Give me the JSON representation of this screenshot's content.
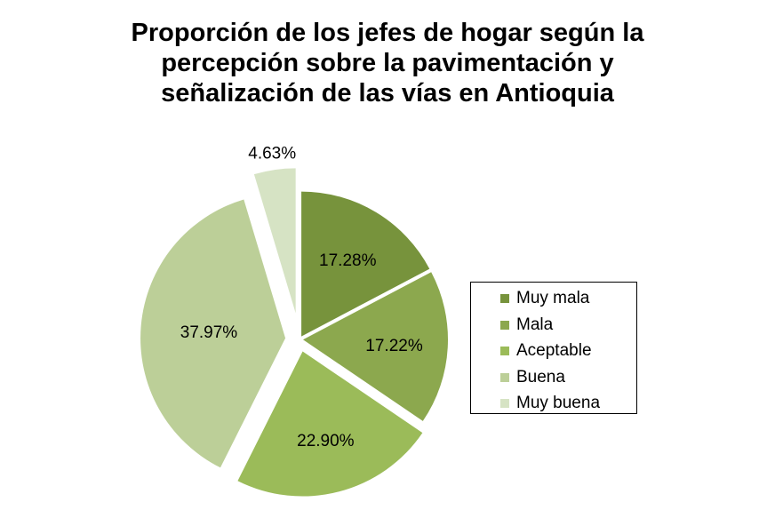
{
  "chart_data": {
    "type": "pie",
    "title_lines": [
      "Proporción de los jefes de hogar según la",
      "percepción sobre la pavimentación y",
      "señalización de las vías en Antioquia"
    ],
    "categories": [
      "Muy mala",
      "Mala",
      "Aceptable",
      "Buena",
      "Muy buena"
    ],
    "values": [
      17.28,
      17.22,
      22.9,
      37.97,
      4.63
    ],
    "labels": [
      "17.28%",
      "17.22%",
      "22.90%",
      "37.97%",
      "4.63%"
    ],
    "colors": [
      "#77933C",
      "#8CA84E",
      "#9BBB59",
      "#BCCF98",
      "#D6E3C4"
    ],
    "exploded": true,
    "legend_position": "right"
  }
}
